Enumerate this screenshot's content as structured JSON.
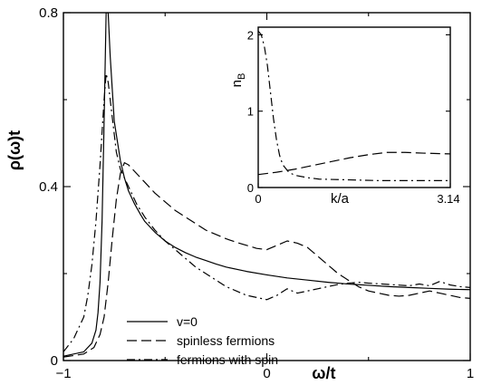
{
  "chart_data": [
    {
      "type": "line",
      "title": "",
      "xlabel": "ω/t",
      "ylabel": "ρ(ω)t",
      "xlim": [
        -1,
        1
      ],
      "ylim": [
        0,
        0.8
      ],
      "xticks": [
        -1,
        0,
        1
      ],
      "xtick_labels": [
        "−1",
        "0",
        "1"
      ],
      "yticks": [
        0,
        0.4,
        0.8
      ],
      "ytick_labels": [
        "0",
        "0.4",
        "0.8"
      ],
      "grid": false,
      "legend_position": "bottom-center",
      "series": [
        {
          "name": "v=0",
          "style": "solid",
          "x": [
            -1.0,
            -0.9,
            -0.86,
            -0.84,
            -0.83,
            -0.82,
            -0.81,
            -0.8,
            -0.79,
            -0.78,
            -0.77,
            -0.75,
            -0.72,
            -0.7,
            -0.68,
            -0.65,
            -0.62,
            -0.6,
            -0.55,
            -0.5,
            -0.45,
            -0.4,
            -0.35,
            -0.3,
            -0.25,
            -0.2,
            -0.1,
            0.0,
            0.1,
            0.2,
            0.3,
            0.4,
            0.5,
            0.6,
            0.7,
            0.8,
            0.9,
            1.0
          ],
          "y": [
            0.01,
            0.02,
            0.04,
            0.07,
            0.11,
            0.18,
            0.32,
            0.55,
            0.8,
            0.8,
            0.7,
            0.55,
            0.46,
            0.42,
            0.39,
            0.36,
            0.335,
            0.32,
            0.295,
            0.275,
            0.26,
            0.248,
            0.238,
            0.23,
            0.222,
            0.215,
            0.205,
            0.197,
            0.19,
            0.185,
            0.18,
            0.176,
            0.173,
            0.17,
            0.168,
            0.166,
            0.164,
            0.163
          ]
        },
        {
          "name": "spinless fermions",
          "style": "dashed",
          "x": [
            -1.0,
            -0.9,
            -0.85,
            -0.82,
            -0.8,
            -0.78,
            -0.76,
            -0.74,
            -0.72,
            -0.7,
            -0.68,
            -0.66,
            -0.64,
            -0.6,
            -0.55,
            -0.5,
            -0.45,
            -0.4,
            -0.35,
            -0.3,
            -0.25,
            -0.2,
            -0.15,
            -0.1,
            -0.05,
            0.0,
            0.05,
            0.1,
            0.15,
            0.2,
            0.25,
            0.3,
            0.35,
            0.4,
            0.45,
            0.5,
            0.55,
            0.6,
            0.65,
            0.7,
            0.75,
            0.8,
            0.85,
            0.9,
            0.95,
            1.0
          ],
          "y": [
            0.008,
            0.015,
            0.03,
            0.06,
            0.1,
            0.18,
            0.28,
            0.37,
            0.43,
            0.455,
            0.45,
            0.44,
            0.43,
            0.41,
            0.385,
            0.365,
            0.345,
            0.33,
            0.315,
            0.3,
            0.29,
            0.28,
            0.272,
            0.265,
            0.258,
            0.255,
            0.265,
            0.275,
            0.27,
            0.26,
            0.24,
            0.22,
            0.2,
            0.185,
            0.17,
            0.16,
            0.155,
            0.15,
            0.148,
            0.15,
            0.155,
            0.16,
            0.155,
            0.15,
            0.145,
            0.143
          ]
        },
        {
          "name": "fermions with spin",
          "style": "dashdot",
          "x": [
            -1.0,
            -0.95,
            -0.9,
            -0.88,
            -0.86,
            -0.84,
            -0.82,
            -0.8,
            -0.79,
            -0.78,
            -0.76,
            -0.74,
            -0.72,
            -0.7,
            -0.68,
            -0.66,
            -0.64,
            -0.6,
            -0.55,
            -0.5,
            -0.45,
            -0.4,
            -0.35,
            -0.3,
            -0.25,
            -0.2,
            -0.15,
            -0.1,
            -0.05,
            0.0,
            0.05,
            0.1,
            0.15,
            0.2,
            0.25,
            0.3,
            0.35,
            0.4,
            0.45,
            0.5,
            0.6,
            0.7,
            0.75,
            0.8,
            0.85,
            0.9,
            0.95,
            1.0
          ],
          "y": [
            0.02,
            0.05,
            0.1,
            0.15,
            0.22,
            0.32,
            0.45,
            0.6,
            0.66,
            0.64,
            0.56,
            0.48,
            0.44,
            0.42,
            0.4,
            0.38,
            0.36,
            0.33,
            0.3,
            0.275,
            0.255,
            0.235,
            0.215,
            0.2,
            0.185,
            0.17,
            0.16,
            0.15,
            0.145,
            0.14,
            0.15,
            0.165,
            0.155,
            0.16,
            0.165,
            0.17,
            0.175,
            0.178,
            0.18,
            0.178,
            0.175,
            0.172,
            0.176,
            0.172,
            0.182,
            0.174,
            0.17,
            0.168
          ]
        }
      ]
    },
    {
      "type": "line",
      "title": "",
      "xlabel": "k/a",
      "ylabel": "n_B",
      "xlim": [
        0,
        3.14
      ],
      "ylim": [
        0,
        2.1
      ],
      "xticks": [
        0,
        3.14
      ],
      "xtick_labels": [
        "0",
        "3.14"
      ],
      "yticks": [
        0,
        1,
        2
      ],
      "ytick_labels": [
        "0",
        "1",
        "2"
      ],
      "grid": false,
      "series": [
        {
          "style": "dashed",
          "x": [
            0.0,
            0.3,
            0.6,
            0.9,
            1.2,
            1.5,
            1.8,
            2.1,
            2.4,
            2.7,
            3.14
          ],
          "y": [
            0.17,
            0.2,
            0.24,
            0.29,
            0.34,
            0.39,
            0.43,
            0.46,
            0.46,
            0.45,
            0.44
          ]
        },
        {
          "style": "dashdot",
          "x": [
            0.0,
            0.05,
            0.1,
            0.15,
            0.2,
            0.25,
            0.3,
            0.35,
            0.4,
            0.5,
            0.6,
            0.8,
            1.0,
            1.5,
            2.0,
            2.5,
            3.14
          ],
          "y": [
            2.05,
            2.0,
            1.85,
            1.6,
            1.25,
            0.9,
            0.62,
            0.42,
            0.3,
            0.2,
            0.16,
            0.13,
            0.11,
            0.1,
            0.09,
            0.09,
            0.09
          ]
        }
      ]
    }
  ]
}
